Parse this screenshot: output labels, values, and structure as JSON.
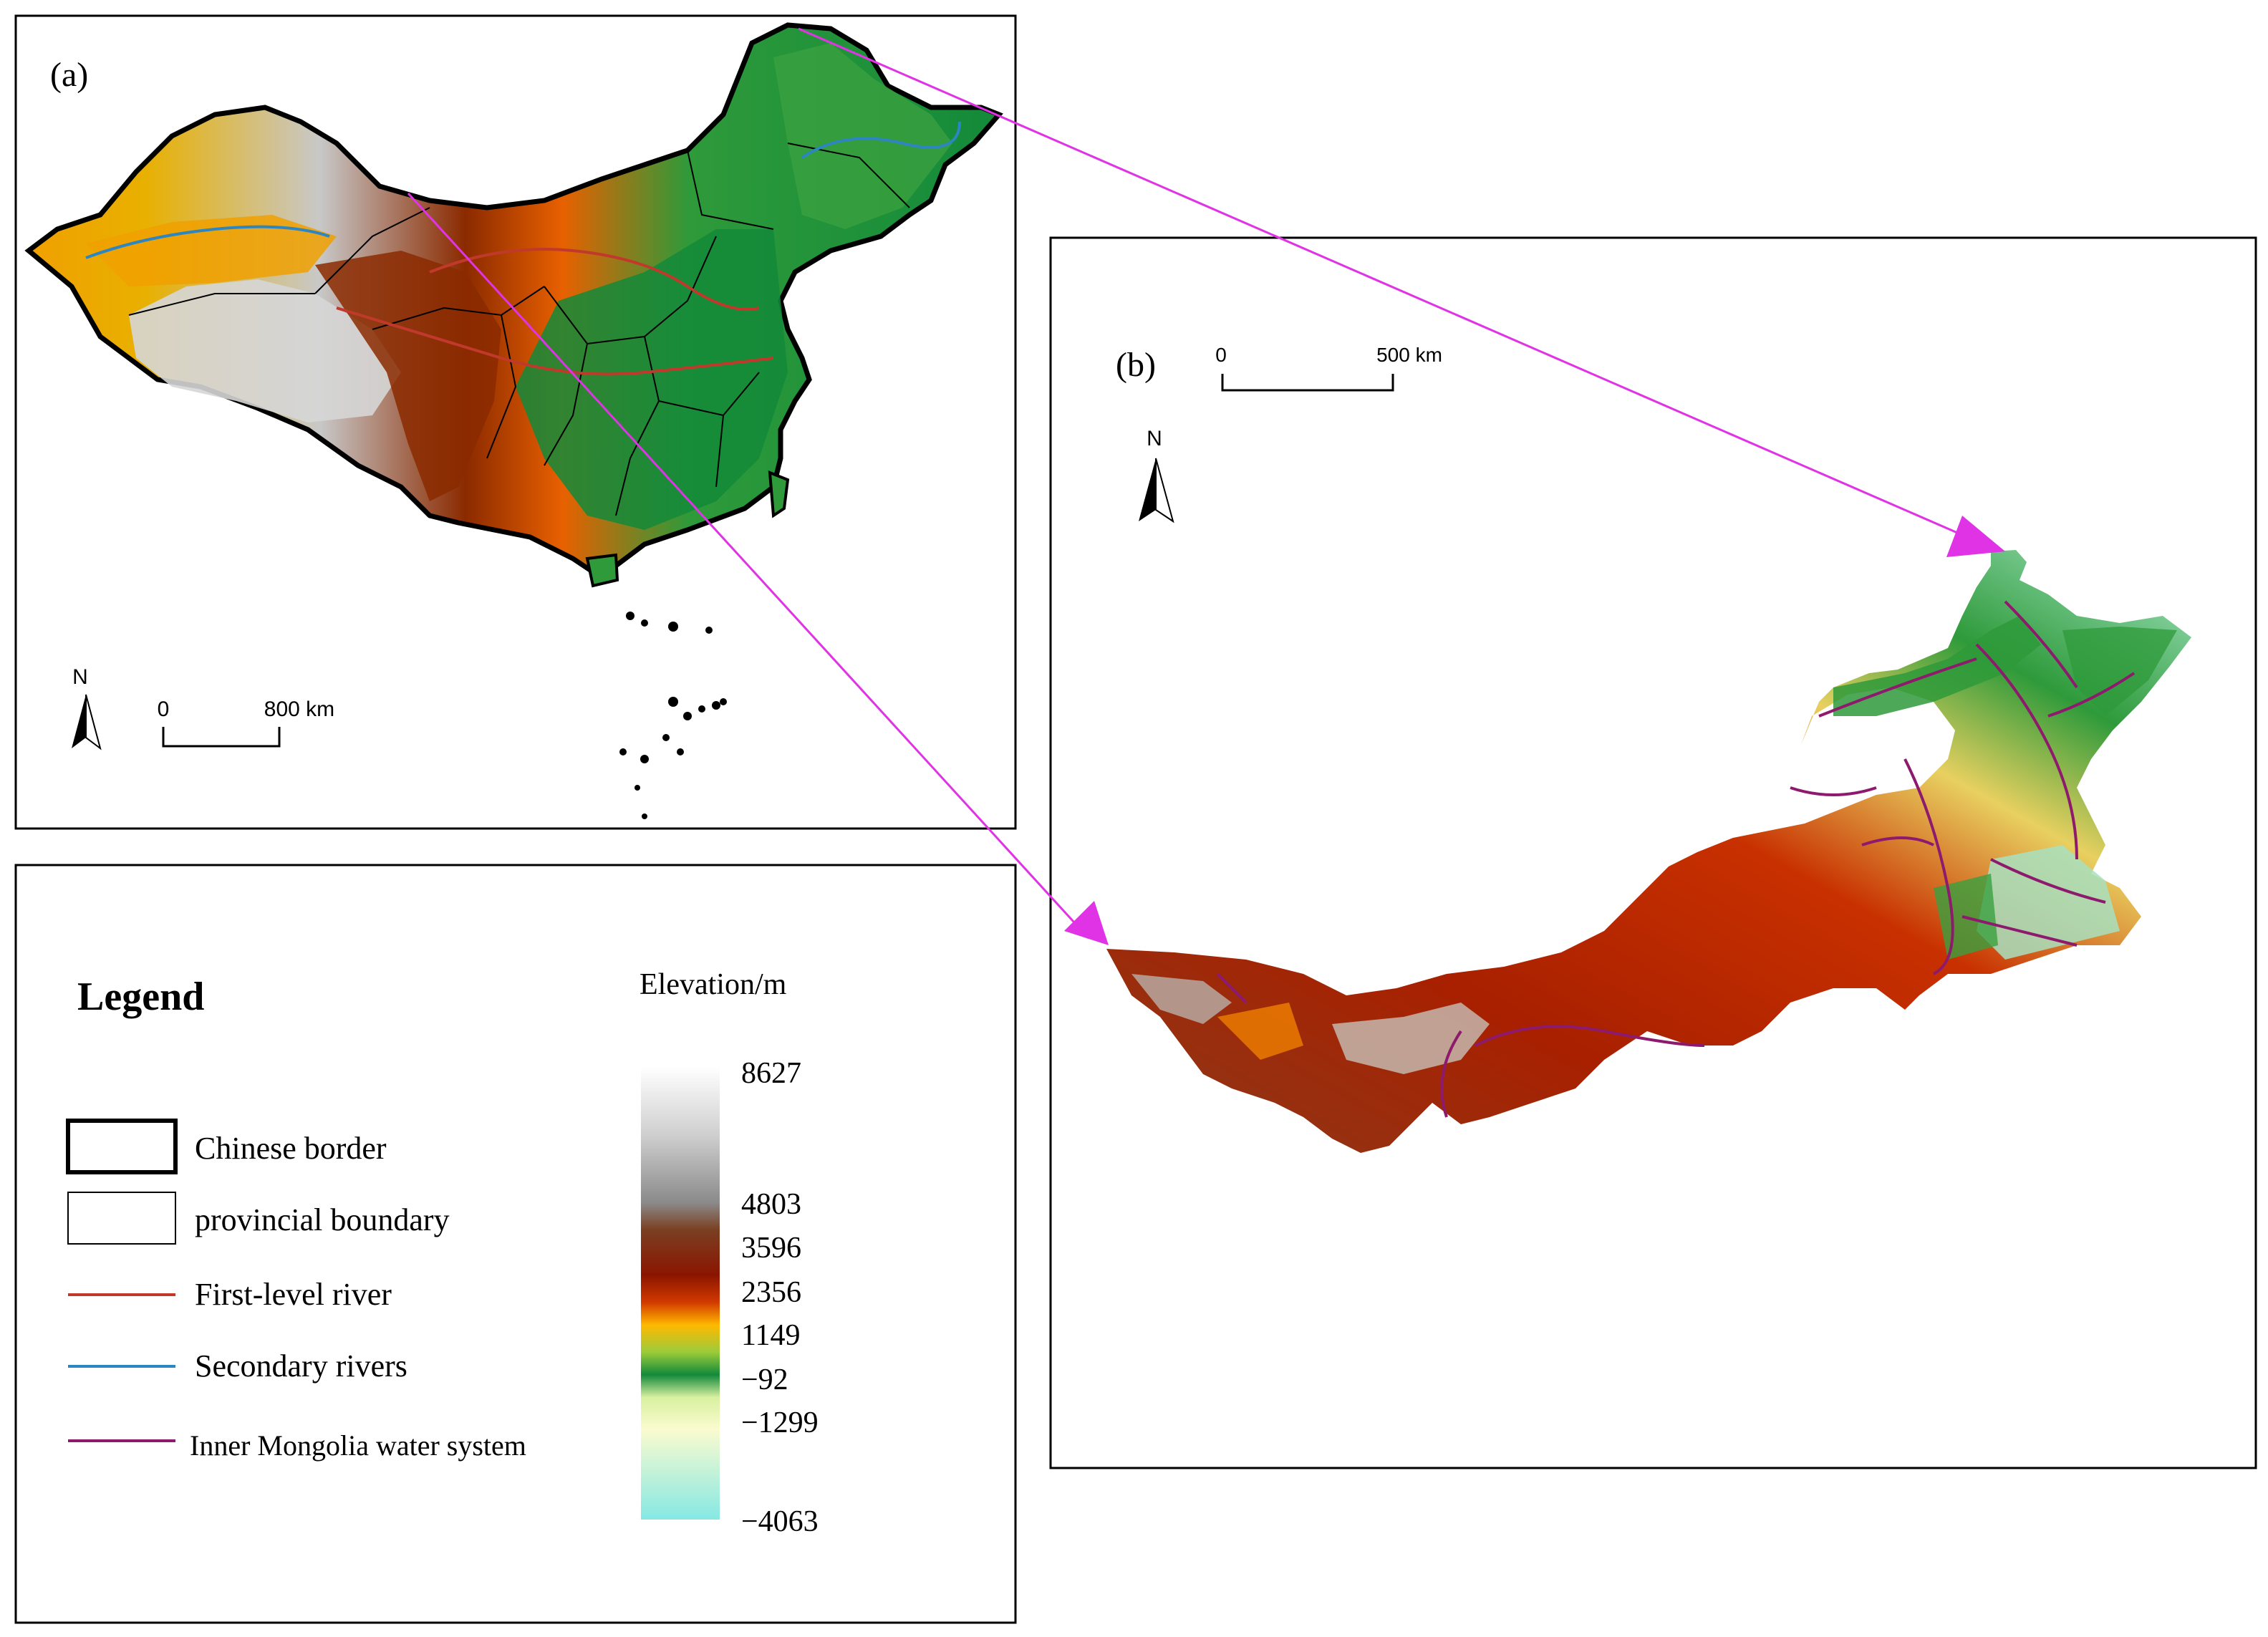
{
  "panel_a": {
    "label": "(a)",
    "north": "N",
    "scale_start": "0",
    "scale_end": "800 km"
  },
  "panel_b": {
    "label": "(b)",
    "north": "N",
    "scale_start": "0",
    "scale_end": "500 km"
  },
  "legend": {
    "title": "Legend",
    "items": [
      {
        "label": "Chinese border"
      },
      {
        "label": "provincial boundary"
      },
      {
        "label": "First-level river"
      },
      {
        "label": "Secondary rivers"
      },
      {
        "label": "Inner Mongolia water system"
      }
    ],
    "colorbar_title": "Elevation/m",
    "colorbar_ticks": [
      "8627",
      "4803",
      "3596",
      "2356",
      "1149",
      "−92",
      "−1299",
      "−4063"
    ]
  },
  "colors": {
    "chinese_border": "#000000",
    "provincial_boundary": "#000000",
    "first_level_river": "#c0392b",
    "secondary_rivers": "#2e86c1",
    "inner_mongolia_water": "#8e1a6e",
    "connector_arrows": "#e033e6"
  },
  "colorbar_stops": [
    "#f2f2f2",
    "#9a9a9a",
    "#7a3a1a",
    "#8b1a00",
    "#c82a00",
    "#ffb000",
    "#1f9a3a",
    "#f5f5b0",
    "#8fe8e0"
  ]
}
